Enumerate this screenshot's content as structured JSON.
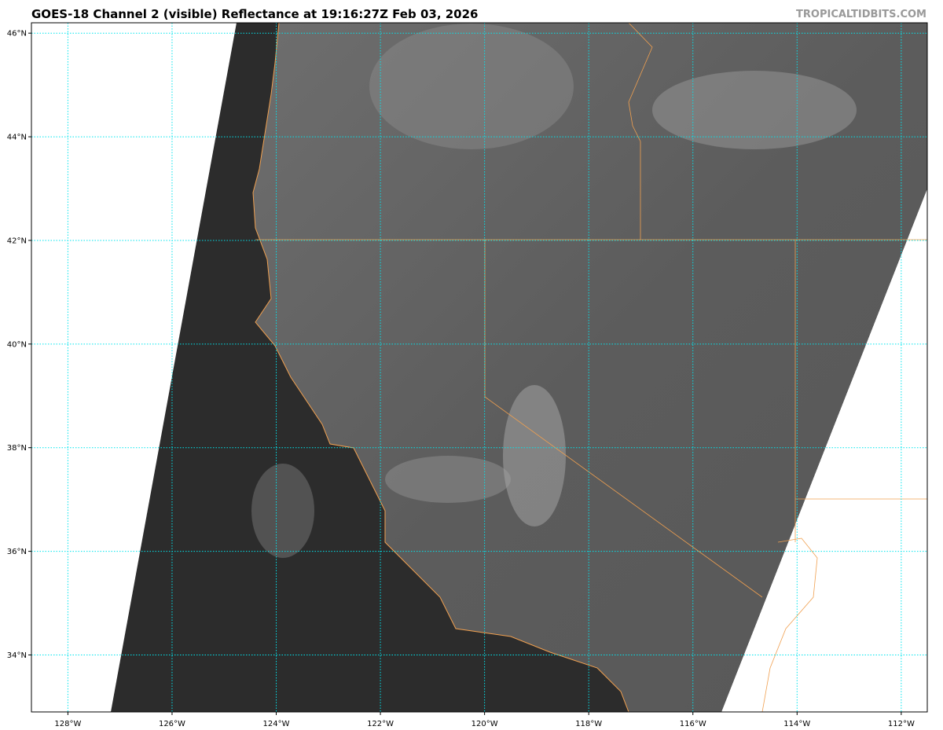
{
  "title": "GOES-18 Channel 2 (visible) Reflectance at 19:16:27Z Feb 03, 2026",
  "watermark": "TROPICALTIDBITS.COM",
  "map": {
    "product": "GOES-18 Channel 2 visible reflectance",
    "grid_color": "#00e5ee",
    "border_color": "#f0a050",
    "lat_ticks": [
      "34°N",
      "36°N",
      "38°N",
      "40°N",
      "42°N",
      "44°N",
      "46°N"
    ],
    "lat_values": [
      34,
      36,
      38,
      40,
      42,
      44,
      46
    ],
    "lon_ticks": [
      "128°W",
      "126°W",
      "124°W",
      "122°W",
      "120°W",
      "118°W",
      "116°W",
      "114°W",
      "112°W"
    ],
    "lon_values": [
      -128,
      -126,
      -124,
      -122,
      -120,
      -118,
      -116,
      -114,
      -112
    ],
    "extent": {
      "lon": [
        -128.7,
        -111.5
      ],
      "lat": [
        32.9,
        46.2
      ]
    }
  }
}
